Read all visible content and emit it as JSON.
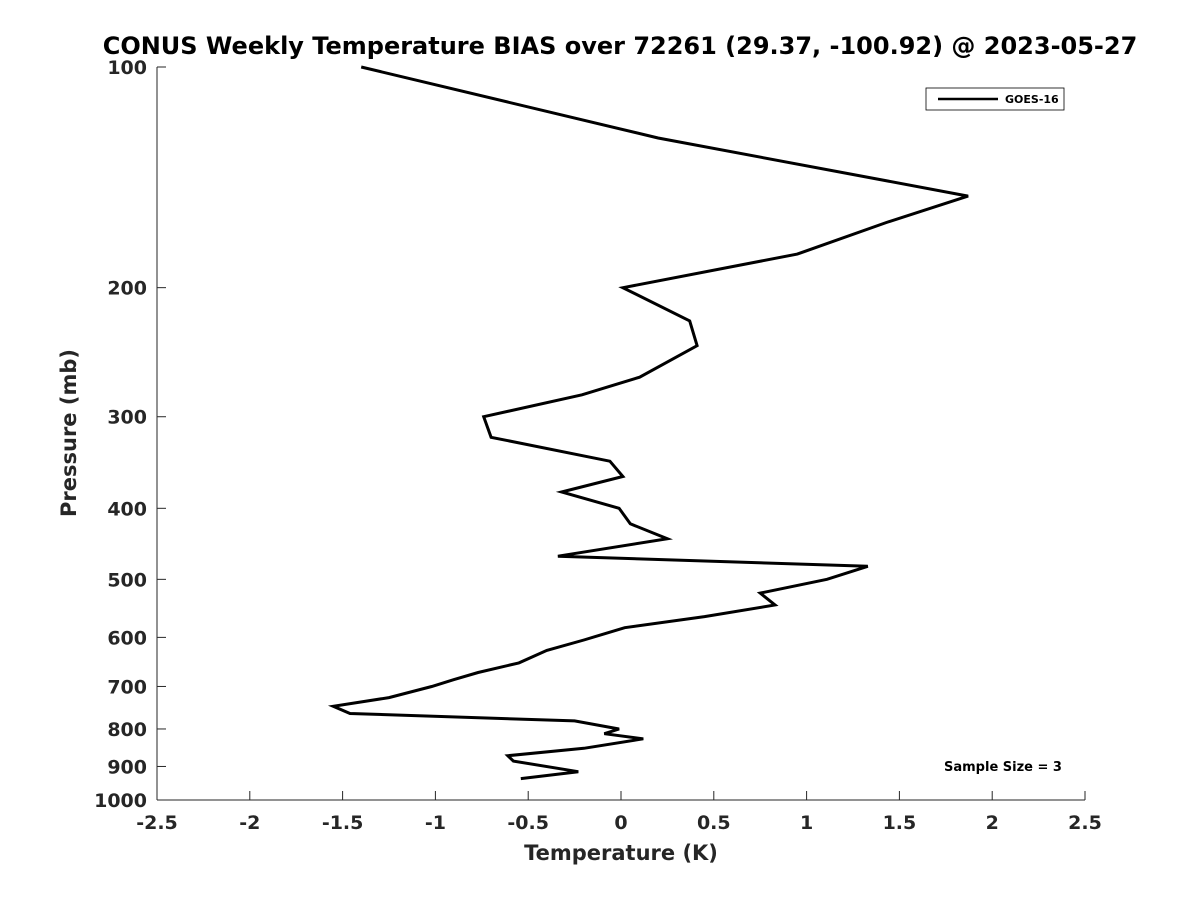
{
  "chart_data": {
    "type": "line",
    "title": "CONUS Weekly Temperature BIAS over 72261 (29.37, -100.92) @ 2023-05-27",
    "xlabel": "Temperature (K)",
    "ylabel": "Pressure (mb)",
    "xlim": [
      -2.5,
      2.5
    ],
    "ylim": [
      100,
      1000
    ],
    "y_scale": "log",
    "y_reversed": true,
    "x_ticks": [
      "-2.5",
      "-2",
      "-1.5",
      "-1",
      "-0.5",
      "0",
      "0.5",
      "1",
      "1.5",
      "2",
      "2.5"
    ],
    "x_tick_values": [
      -2.5,
      -2,
      -1.5,
      -1,
      -0.5,
      0,
      0.5,
      1,
      1.5,
      2,
      2.5
    ],
    "y_ticks": [
      "100",
      "200",
      "300",
      "400",
      "500",
      "600",
      "700",
      "800",
      "900",
      "1000"
    ],
    "y_tick_values": [
      100,
      200,
      300,
      400,
      500,
      600,
      700,
      800,
      900,
      1000
    ],
    "grid": false,
    "legend_position": "top-right",
    "annotation": "Sample Size = 3",
    "series": [
      {
        "name": "GOES-16",
        "color": "#000000",
        "points": [
          {
            "x": -1.4,
            "p": 100
          },
          {
            "x": 0.2,
            "p": 125
          },
          {
            "x": 1.87,
            "p": 150
          },
          {
            "x": 1.43,
            "p": 163
          },
          {
            "x": 0.95,
            "p": 180
          },
          {
            "x": 0.01,
            "p": 200
          },
          {
            "x": 0.37,
            "p": 222
          },
          {
            "x": 0.41,
            "p": 240
          },
          {
            "x": 0.1,
            "p": 265
          },
          {
            "x": -0.21,
            "p": 280
          },
          {
            "x": -0.74,
            "p": 300
          },
          {
            "x": -0.7,
            "p": 320
          },
          {
            "x": -0.06,
            "p": 345
          },
          {
            "x": 0.01,
            "p": 362
          },
          {
            "x": -0.32,
            "p": 380
          },
          {
            "x": -0.01,
            "p": 400
          },
          {
            "x": 0.05,
            "p": 420
          },
          {
            "x": 0.25,
            "p": 440
          },
          {
            "x": -0.34,
            "p": 465
          },
          {
            "x": 1.33,
            "p": 480
          },
          {
            "x": 1.11,
            "p": 500
          },
          {
            "x": 0.75,
            "p": 522
          },
          {
            "x": 0.83,
            "p": 542
          },
          {
            "x": 0.45,
            "p": 562
          },
          {
            "x": 0.02,
            "p": 582
          },
          {
            "x": -0.2,
            "p": 605
          },
          {
            "x": -0.4,
            "p": 625
          },
          {
            "x": -0.55,
            "p": 650
          },
          {
            "x": -0.77,
            "p": 670
          },
          {
            "x": -0.9,
            "p": 685
          },
          {
            "x": -1.02,
            "p": 700
          },
          {
            "x": -1.25,
            "p": 725
          },
          {
            "x": -1.55,
            "p": 745
          },
          {
            "x": -1.46,
            "p": 762
          },
          {
            "x": -0.25,
            "p": 780
          },
          {
            "x": -0.01,
            "p": 800
          },
          {
            "x": -0.09,
            "p": 812
          },
          {
            "x": 0.12,
            "p": 825
          },
          {
            "x": -0.2,
            "p": 850
          },
          {
            "x": -0.61,
            "p": 870
          },
          {
            "x": -0.58,
            "p": 885
          },
          {
            "x": -0.23,
            "p": 915
          },
          {
            "x": -0.54,
            "p": 935
          }
        ]
      }
    ]
  }
}
